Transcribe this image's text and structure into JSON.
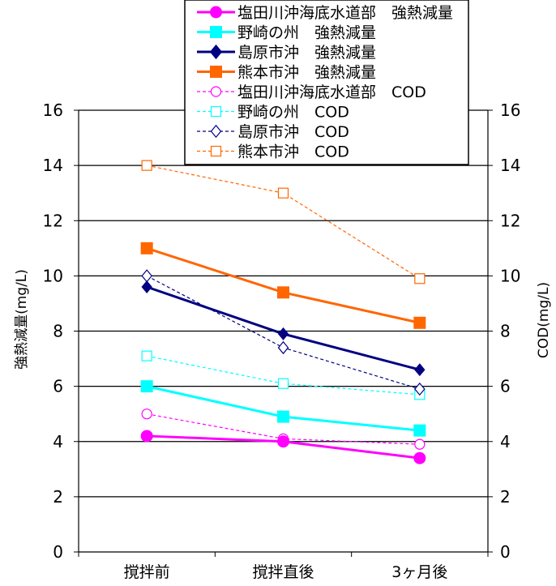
{
  "chart_data": {
    "type": "line",
    "categories": [
      "撹拌前",
      "撹拌直後",
      "3ヶ月後"
    ],
    "ylabel_left": "強熱減量(mg/L)",
    "ylabel_right": "COD(mg/L)",
    "ylim": [
      0,
      16
    ],
    "yticks": [
      "0",
      "2",
      "4",
      "6",
      "8",
      "10",
      "12",
      "14",
      "16"
    ],
    "grid": true,
    "legend_position": "top",
    "series": [
      {
        "name": "塩田川沖海底水道部　強熱減量",
        "values": [
          4.2,
          4.0,
          3.4
        ],
        "color": "#ff00ff",
        "marker": "circle",
        "filled": true,
        "dashed": false
      },
      {
        "name": "野崎の州　強熱減量",
        "values": [
          6.0,
          4.9,
          4.4
        ],
        "color": "#00ffff",
        "marker": "square",
        "filled": true,
        "dashed": false
      },
      {
        "name": "島原市沖　強熱減量",
        "values": [
          9.6,
          7.9,
          6.6
        ],
        "color": "#000080",
        "marker": "diamond",
        "filled": true,
        "dashed": false
      },
      {
        "name": "熊本市沖　強熱減量",
        "values": [
          11.0,
          9.4,
          8.3
        ],
        "color": "#ff6600",
        "marker": "square",
        "filled": true,
        "dashed": false
      },
      {
        "name": "塩田川沖海底水道部　COD",
        "values": [
          5.0,
          4.1,
          3.9
        ],
        "color": "#ff00ff",
        "marker": "circle",
        "filled": false,
        "dashed": true
      },
      {
        "name": "野崎の州　COD",
        "values": [
          7.1,
          6.1,
          5.7
        ],
        "color": "#00ffff",
        "marker": "square",
        "filled": false,
        "dashed": true
      },
      {
        "name": "島原市沖　COD",
        "values": [
          10.0,
          7.4,
          5.9
        ],
        "color": "#000080",
        "marker": "diamond",
        "filled": false,
        "dashed": true
      },
      {
        "name": "熊本市沖　COD",
        "values": [
          14.0,
          13.0,
          9.9
        ],
        "color": "#ff6600",
        "marker": "square",
        "filled": false,
        "dashed": true
      }
    ]
  }
}
